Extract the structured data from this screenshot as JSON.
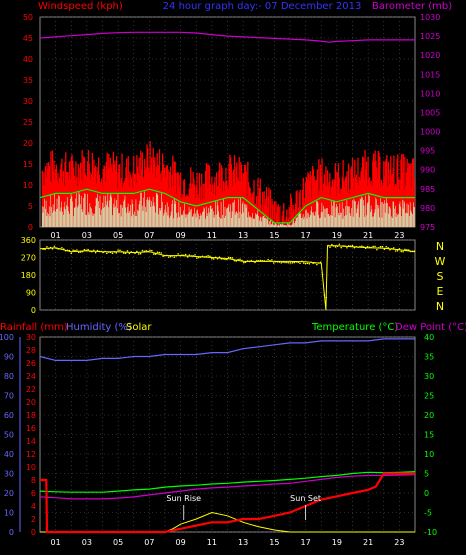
{
  "header": {
    "title": "24 hour graph day:- 07 December 2013",
    "left_label": "Windspeed (kph)",
    "right_label": "Barometer (mb)"
  },
  "x_axis": {
    "hour_ticks": [
      "01",
      "03",
      "05",
      "07",
      "09",
      "11",
      "13",
      "15",
      "17",
      "19",
      "21",
      "23"
    ],
    "hour_positions": [
      1,
      3,
      5,
      7,
      9,
      11,
      13,
      15,
      17,
      19,
      21,
      23
    ]
  },
  "colors": {
    "wind": "#ff0000",
    "gust_avg": "#00ff00",
    "wind_light": "#ccffcc",
    "barometer": "#cc00cc",
    "direction": "#ffff00",
    "rain": "#ff0000",
    "humidity": "#6666ff",
    "solar": "#ffff00",
    "temperature": "#00ff00",
    "dew_point": "#cc00cc",
    "axis_text": "#ff0000",
    "axis_text_right": "#cc00cc",
    "compass_text": "#ffff00"
  },
  "chart_data": [
    {
      "type": "line",
      "title": "24 hour graph day:- 07 December 2013",
      "ylabel": "Windspeed (kph)",
      "y2label": "Barometer (mb)",
      "xlim": [
        0,
        24
      ],
      "ylim": [
        0,
        50
      ],
      "y2lim": [
        975,
        1030
      ],
      "y_ticks": [
        0,
        5,
        10,
        15,
        20,
        25,
        30,
        35,
        40,
        45,
        50
      ],
      "y2_ticks": [
        975,
        980,
        985,
        990,
        995,
        1000,
        1005,
        1010,
        1015,
        1020,
        1025,
        1030
      ],
      "series": [
        {
          "key": "barometer",
          "axis": "right",
          "x": [
            0,
            1,
            2,
            3,
            4,
            5,
            6,
            7,
            8,
            9,
            10,
            11,
            12,
            13,
            14,
            15,
            16,
            17,
            18,
            18.5,
            19,
            20,
            21,
            22,
            23,
            24
          ],
          "y": [
            1024.5,
            1024.8,
            1025.1,
            1025.4,
            1025.7,
            1025.9,
            1026.0,
            1026.0,
            1026.0,
            1026.0,
            1025.8,
            1025.4,
            1025.0,
            1024.8,
            1024.6,
            1024.4,
            1024.2,
            1024.0,
            1023.7,
            1023.4,
            1023.6,
            1023.8,
            1024.0,
            1024.0,
            1024.0,
            1024.0
          ]
        },
        {
          "key": "wind_speed",
          "axis": "left",
          "x": [
            0,
            1,
            2,
            3,
            4,
            5,
            6,
            7,
            8,
            9,
            10,
            11,
            12,
            13,
            14,
            15,
            16,
            17,
            18,
            19,
            20,
            21,
            22,
            23,
            24
          ],
          "y": [
            12,
            13,
            12,
            14,
            13,
            12,
            12,
            15,
            13,
            10,
            9,
            10,
            12,
            11,
            7,
            2,
            2,
            8,
            11,
            10,
            11,
            13,
            12,
            12,
            11
          ]
        },
        {
          "key": "gust_avg",
          "axis": "left",
          "x": [
            0,
            1,
            2,
            3,
            4,
            5,
            6,
            7,
            8,
            9,
            10,
            11,
            12,
            13,
            14,
            15,
            16,
            17,
            18,
            19,
            20,
            21,
            22,
            23,
            24
          ],
          "y": [
            7,
            8,
            8,
            9,
            8,
            8,
            8,
            9,
            8,
            6,
            5,
            6,
            7,
            7,
            4,
            1,
            1,
            5,
            7,
            6,
            7,
            8,
            7,
            7,
            7
          ]
        }
      ]
    },
    {
      "type": "scatter",
      "ylim": [
        0,
        360
      ],
      "y_ticks": [
        0,
        90,
        180,
        270,
        360
      ],
      "compass": [
        "N",
        "W",
        "S",
        "E",
        "N"
      ],
      "series": [
        {
          "key": "wind_direction",
          "x": [
            0,
            1,
            2,
            3,
            4,
            5,
            6,
            7,
            8,
            9,
            10,
            11,
            12,
            13,
            14,
            15,
            16,
            17,
            18,
            18.3,
            18.4,
            19,
            20,
            21,
            22,
            23,
            24
          ],
          "y": [
            315,
            320,
            300,
            305,
            300,
            300,
            295,
            300,
            280,
            280,
            275,
            270,
            265,
            250,
            250,
            250,
            250,
            248,
            240,
            0,
            330,
            330,
            325,
            320,
            318,
            310,
            300
          ]
        }
      ]
    },
    {
      "type": "line",
      "header_labels": {
        "rainfall": "Rainfall (mm)",
        "humidity": "Humidity (%)",
        "solar": "Solar",
        "temperature": "Temperature (°C)",
        "dew_point": "Dew Point (°C)"
      },
      "annotations": [
        {
          "text": "Sun Rise",
          "x": 9.2
        },
        {
          "text": "Sun Set",
          "x": 17.0
        }
      ],
      "humidity_ticks": [
        0,
        10,
        20,
        30,
        40,
        50,
        60,
        70,
        80,
        90,
        100
      ],
      "rain_ticks": [
        0,
        2,
        4,
        6,
        8,
        10,
        12,
        14,
        16,
        18,
        20,
        22,
        24,
        26,
        28,
        30
      ],
      "temp_ticks": [
        -10,
        -5,
        0,
        5,
        10,
        15,
        20,
        25,
        30,
        35,
        40
      ],
      "series": [
        {
          "key": "humidity",
          "ylim": [
            0,
            100
          ],
          "x": [
            0,
            1,
            2,
            3,
            4,
            5,
            6,
            7,
            8,
            9,
            10,
            11,
            12,
            13,
            14,
            15,
            16,
            17,
            18,
            19,
            20,
            21,
            22,
            23,
            24
          ],
          "y": [
            90,
            88,
            88,
            88,
            89,
            89,
            90,
            90,
            91,
            91,
            91,
            92,
            92,
            94,
            95,
            96,
            97,
            97,
            98,
            98,
            98,
            98,
            99,
            99,
            99
          ]
        },
        {
          "key": "rainfall",
          "ylim": [
            0,
            30
          ],
          "x": [
            0,
            0.4,
            0.45,
            1,
            5,
            6,
            7,
            8,
            9,
            10,
            11,
            12,
            13,
            14,
            15,
            16,
            17,
            18,
            19,
            20,
            21,
            21.5,
            22,
            23,
            24
          ],
          "y": [
            8,
            8,
            0,
            0,
            0,
            0,
            0,
            0,
            0.5,
            1,
            1.5,
            1.5,
            2,
            2,
            2.5,
            3,
            4,
            5,
            5.5,
            6,
            6.5,
            7,
            9,
            9,
            9
          ]
        },
        {
          "key": "solar",
          "ylim": [
            0,
            30
          ],
          "x": [
            0,
            8,
            8.5,
            9,
            10,
            11,
            12,
            13,
            14,
            15,
            16,
            24
          ],
          "y": [
            0,
            0,
            0.5,
            1.2,
            2,
            3,
            2.5,
            1.5,
            0.8,
            0.3,
            0,
            0
          ]
        },
        {
          "key": "temperature",
          "ylim": [
            -10,
            40
          ],
          "x": [
            0,
            1,
            2,
            3,
            4,
            5,
            6,
            7,
            8,
            9,
            10,
            11,
            12,
            13,
            14,
            15,
            16,
            17,
            18,
            19,
            20,
            21,
            22,
            23,
            24
          ],
          "y": [
            0.5,
            0.3,
            0.2,
            0.2,
            0.2,
            0.5,
            0.8,
            1.0,
            1.5,
            1.8,
            2.0,
            2.3,
            2.5,
            2.8,
            3.0,
            3.2,
            3.5,
            3.8,
            4.2,
            4.5,
            5.0,
            5.3,
            5.2,
            5.3,
            5.5
          ]
        },
        {
          "key": "dew_point",
          "ylim": [
            -10,
            40
          ],
          "x": [
            0,
            1,
            2,
            3,
            4,
            5,
            6,
            7,
            8,
            9,
            10,
            11,
            12,
            13,
            14,
            15,
            16,
            17,
            18,
            19,
            20,
            21,
            22,
            23,
            24
          ],
          "y": [
            -1.0,
            -1.2,
            -1.5,
            -1.5,
            -1.5,
            -1.3,
            -1.0,
            -0.5,
            0,
            0.5,
            1.0,
            1.3,
            1.5,
            1.8,
            2.0,
            2.3,
            2.5,
            3.0,
            3.5,
            4.0,
            4.3,
            4.5,
            4.5,
            4.6,
            4.7
          ]
        }
      ]
    }
  ]
}
